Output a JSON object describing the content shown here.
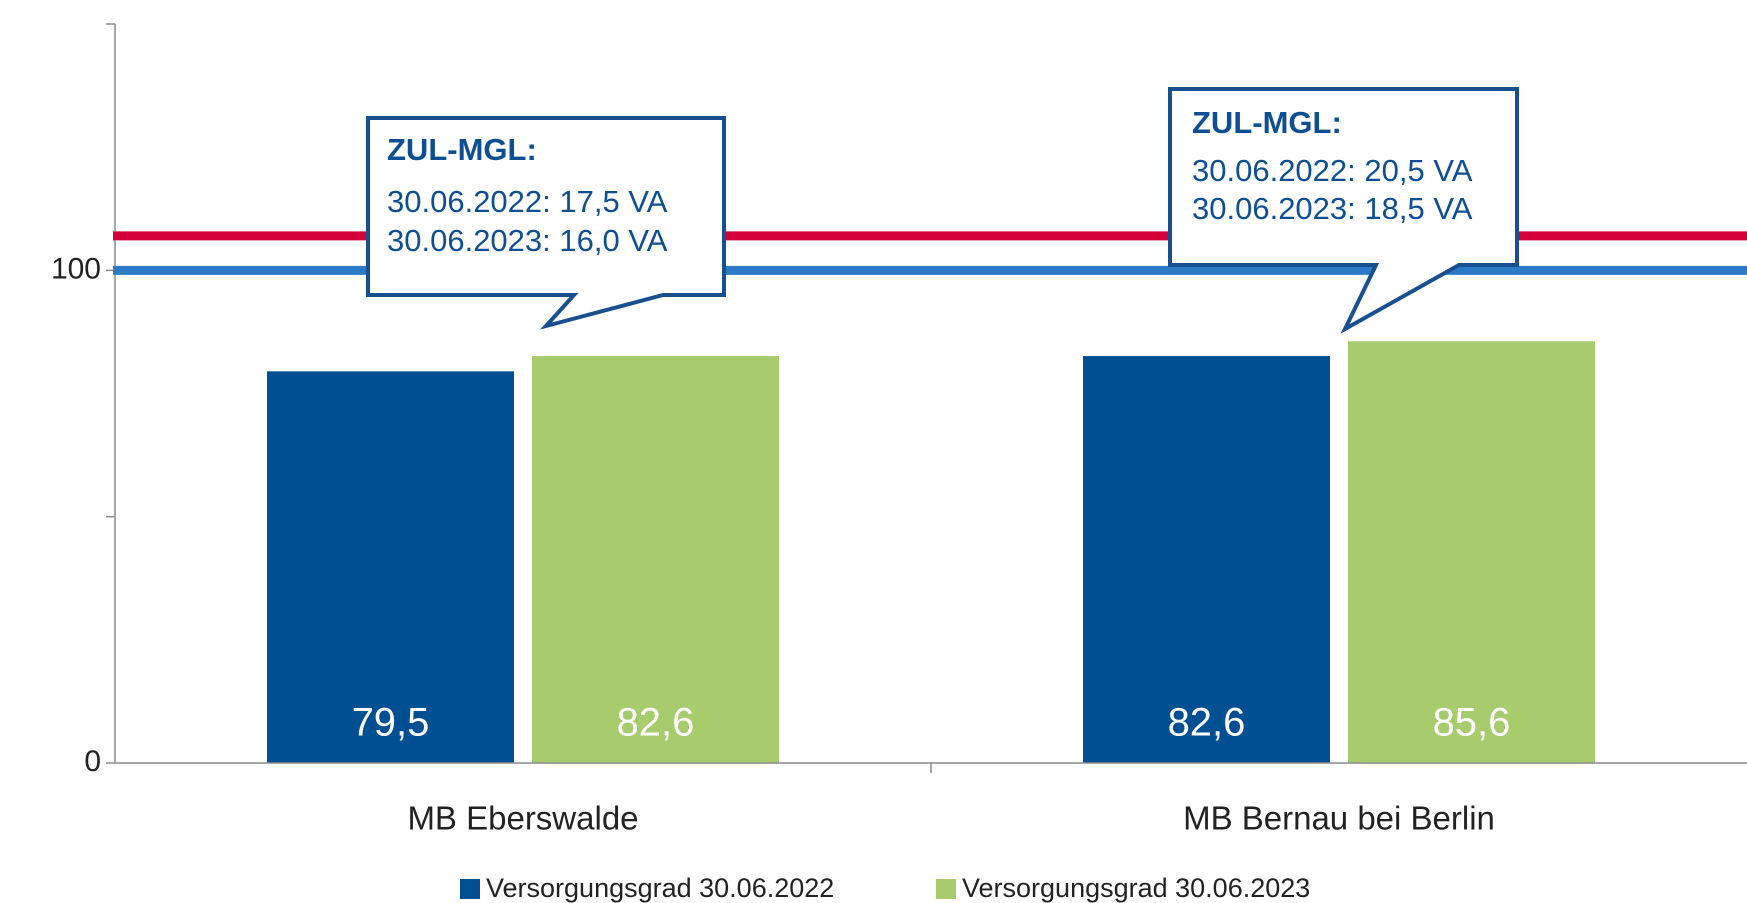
{
  "chart_data": {
    "type": "bar",
    "categories": [
      "MB Eberswalde",
      "MB Bernau bei Berlin"
    ],
    "series": [
      {
        "name": "Versorgungsgrad 30.06.2022",
        "color": "#004f93",
        "values": [
          79.5,
          82.6
        ],
        "value_labels": [
          "79,5",
          "82,6"
        ]
      },
      {
        "name": "Versorgungsgrad 30.06.2023",
        "color": "#a8cb6d",
        "values": [
          82.6,
          85.6
        ],
        "value_labels": [
          "82,6",
          "85,6"
        ]
      }
    ],
    "ylim": [
      0,
      150
    ],
    "yticks": [
      0,
      100
    ],
    "minor_yticks": [
      50,
      150
    ],
    "reference_lines": [
      {
        "value": 107,
        "color": "#d50037"
      },
      {
        "value": 100,
        "color": "#2a7ac6"
      }
    ],
    "annotations": [
      {
        "title": "ZUL-MGL:",
        "lines": [
          "30.06.2022: 17,5 VA",
          "30.06.2023: 16,0 VA"
        ]
      },
      {
        "title": "ZUL-MGL:",
        "lines": [
          "30.06.2022: 20,5 VA",
          "30.06.2023: 18,5 VA"
        ]
      }
    ],
    "legend": "bottom"
  }
}
